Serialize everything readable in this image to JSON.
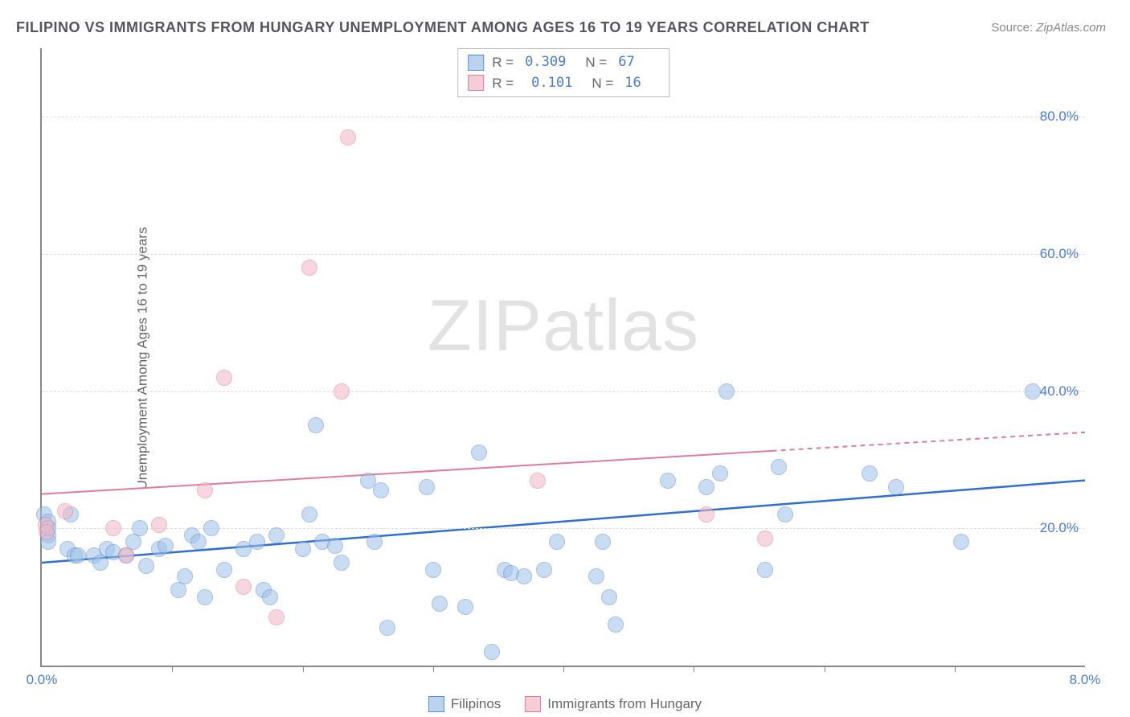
{
  "title": "FILIPINO VS IMMIGRANTS FROM HUNGARY UNEMPLOYMENT AMONG AGES 16 TO 19 YEARS CORRELATION CHART",
  "source_label": "Source:",
  "source_value": "ZipAtlas.com",
  "watermark": "ZIPatlas",
  "ylabel": "Unemployment Among Ages 16 to 19 years",
  "chart": {
    "type": "scatter",
    "background_color": "#ffffff",
    "grid_color": "#dddddd",
    "axis_color": "#888888",
    "xlim": [
      0.0,
      8.0
    ],
    "ylim": [
      0.0,
      90.0
    ],
    "x_ticks_minor": [
      1.0,
      2.0,
      3.0,
      4.0,
      5.0,
      6.0,
      7.0
    ],
    "x_tick_labels": [
      {
        "v": 0.0,
        "label": "0.0%"
      },
      {
        "v": 8.0,
        "label": "8.0%"
      }
    ],
    "y_gridlines": [
      20.0,
      40.0,
      60.0,
      80.0
    ],
    "y_tick_labels": [
      {
        "v": 20.0,
        "label": "20.0%"
      },
      {
        "v": 40.0,
        "label": "40.0%"
      },
      {
        "v": 60.0,
        "label": "60.0%"
      },
      {
        "v": 80.0,
        "label": "80.0%"
      }
    ],
    "marker_radius": 10,
    "marker_border_width": 1.5,
    "series": [
      {
        "name": "Filipinos",
        "fill": "#9fc1e8",
        "fill_opacity": 0.55,
        "stroke": "#5a8fd6",
        "trend": {
          "y0": 15.0,
          "y1": 27.0,
          "color": "#2f6fd0",
          "width": 2.5,
          "dash_from_x": null
        },
        "R": "0.309",
        "N": "67",
        "points": [
          [
            0.02,
            22.0
          ],
          [
            0.05,
            19.0
          ],
          [
            0.05,
            21.0
          ],
          [
            0.05,
            18.0
          ],
          [
            0.05,
            20.0
          ],
          [
            0.2,
            17.0
          ],
          [
            0.22,
            22.0
          ],
          [
            0.25,
            16.0
          ],
          [
            0.28,
            16.0
          ],
          [
            0.4,
            16.0
          ],
          [
            0.45,
            15.0
          ],
          [
            0.5,
            17.0
          ],
          [
            0.55,
            16.5
          ],
          [
            0.65,
            16.0
          ],
          [
            0.7,
            18.0
          ],
          [
            0.75,
            20.0
          ],
          [
            0.8,
            14.5
          ],
          [
            0.9,
            17.0
          ],
          [
            0.95,
            17.5
          ],
          [
            1.05,
            11.0
          ],
          [
            1.1,
            13.0
          ],
          [
            1.15,
            19.0
          ],
          [
            1.2,
            18.0
          ],
          [
            1.25,
            10.0
          ],
          [
            1.3,
            20.0
          ],
          [
            1.4,
            14.0
          ],
          [
            1.55,
            17.0
          ],
          [
            1.65,
            18.0
          ],
          [
            1.7,
            11.0
          ],
          [
            1.75,
            10.0
          ],
          [
            1.8,
            19.0
          ],
          [
            2.0,
            17.0
          ],
          [
            2.05,
            22.0
          ],
          [
            2.1,
            35.0
          ],
          [
            2.15,
            18.0
          ],
          [
            2.25,
            17.5
          ],
          [
            2.3,
            15.0
          ],
          [
            2.5,
            27.0
          ],
          [
            2.55,
            18.0
          ],
          [
            2.6,
            25.5
          ],
          [
            2.65,
            5.5
          ],
          [
            2.95,
            26.0
          ],
          [
            3.0,
            14.0
          ],
          [
            3.05,
            9.0
          ],
          [
            3.25,
            8.5
          ],
          [
            3.35,
            31.0
          ],
          [
            3.45,
            2.0
          ],
          [
            3.55,
            14.0
          ],
          [
            3.6,
            13.5
          ],
          [
            3.7,
            13.0
          ],
          [
            3.85,
            14.0
          ],
          [
            3.95,
            18.0
          ],
          [
            4.25,
            13.0
          ],
          [
            4.3,
            18.0
          ],
          [
            4.35,
            10.0
          ],
          [
            4.4,
            6.0
          ],
          [
            5.1,
            26.0
          ],
          [
            5.2,
            28.0
          ],
          [
            5.25,
            40.0
          ],
          [
            5.55,
            14.0
          ],
          [
            5.65,
            29.0
          ],
          [
            5.7,
            22.0
          ],
          [
            6.35,
            28.0
          ],
          [
            6.55,
            26.0
          ],
          [
            7.05,
            18.0
          ],
          [
            7.6,
            40.0
          ],
          [
            4.8,
            27.0
          ]
        ]
      },
      {
        "name": "Immigrants from Hungary",
        "fill": "#f2b8c6",
        "fill_opacity": 0.55,
        "stroke": "#e27a98",
        "trend": {
          "y0": 25.0,
          "y1": 34.0,
          "color": "#e27a98",
          "width": 2,
          "dash_from_x": 5.6
        },
        "R": "0.101",
        "N": "16",
        "points": [
          [
            0.03,
            20.5
          ],
          [
            0.04,
            19.5
          ],
          [
            0.18,
            22.5
          ],
          [
            0.55,
            20.0
          ],
          [
            0.65,
            16.0
          ],
          [
            0.9,
            20.5
          ],
          [
            1.25,
            25.5
          ],
          [
            1.4,
            42.0
          ],
          [
            1.55,
            11.5
          ],
          [
            1.8,
            7.0
          ],
          [
            2.05,
            58.0
          ],
          [
            2.3,
            40.0
          ],
          [
            2.35,
            77.0
          ],
          [
            3.8,
            27.0
          ],
          [
            5.1,
            22.0
          ],
          [
            5.55,
            18.5
          ]
        ]
      }
    ]
  },
  "legend": {
    "series1_label": "Filipinos",
    "series2_label": "Immigrants from Hungary"
  }
}
